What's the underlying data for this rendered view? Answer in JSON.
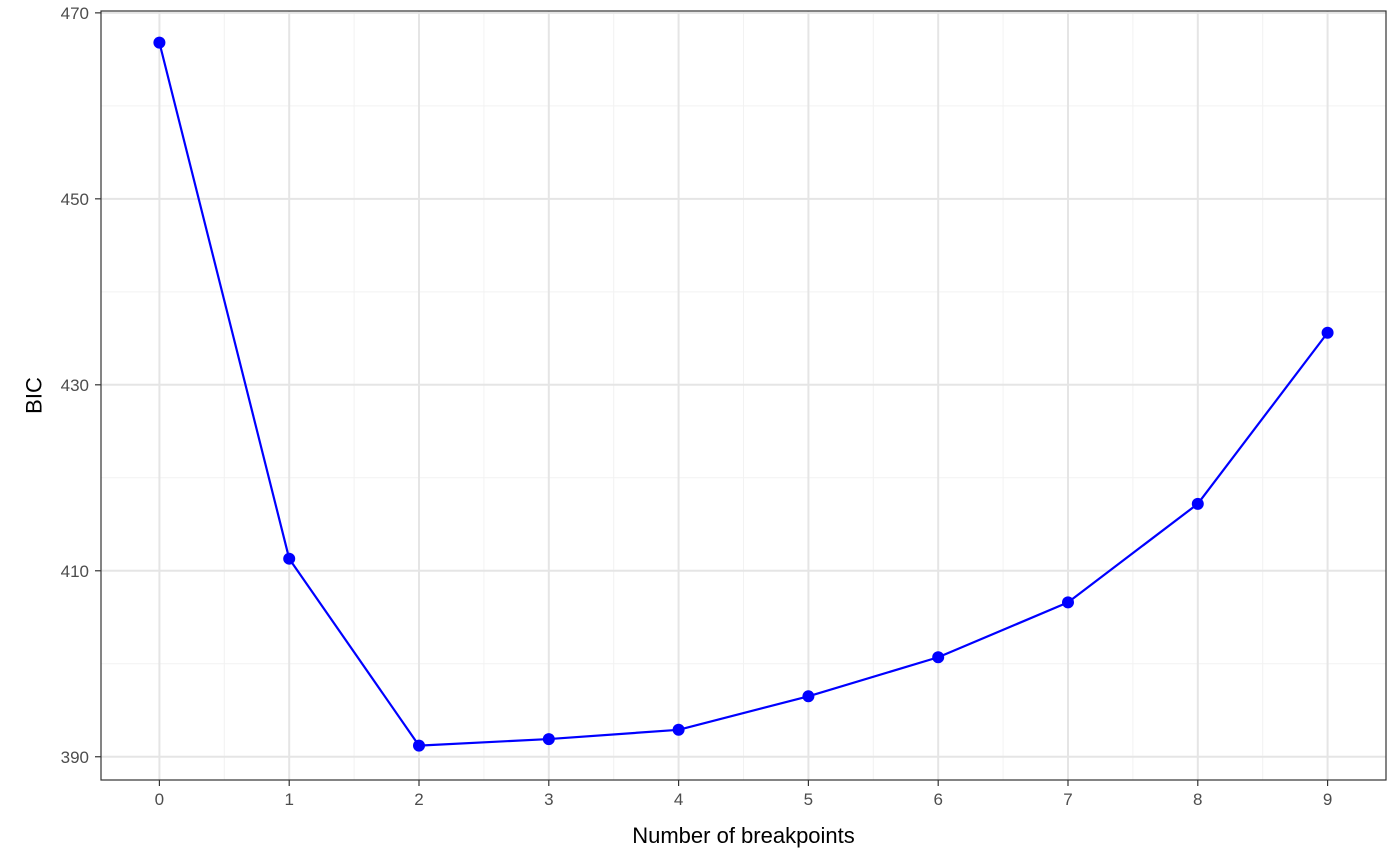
{
  "chart_data": {
    "type": "line",
    "xlabel": "Number of breakpoints",
    "ylabel": "BIC",
    "x": [
      0,
      1,
      2,
      3,
      4,
      5,
      6,
      7,
      8,
      9
    ],
    "series": [
      {
        "values": [
          466.8,
          411.3,
          391.2,
          391.9,
          392.9,
          396.5,
          400.7,
          406.6,
          417.2,
          435.6
        ]
      }
    ],
    "xlim": [
      -0.45,
      9.45
    ],
    "ylim": [
      387.5,
      470.2
    ],
    "xticks": [
      "0",
      "1",
      "2",
      "3",
      "4",
      "5",
      "6",
      "7",
      "8",
      "9"
    ],
    "yticks": [
      "390",
      "410",
      "430",
      "450",
      "470"
    ],
    "grid": true,
    "theme": "bw",
    "colors": {
      "series": "#0000ff",
      "grid_major": "#e5e5e5",
      "grid_minor": "#f2f2f2",
      "panel_border": "#333333",
      "tick_label": "#4d4d4d"
    }
  }
}
